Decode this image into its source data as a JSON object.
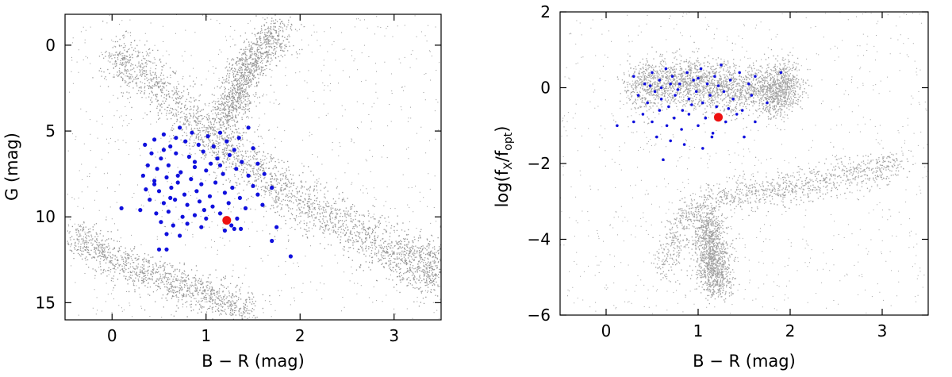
{
  "chart_data": [
    {
      "type": "scatter",
      "xlabel": "B − R (mag)",
      "ylabel": "G (mag)",
      "xlim": [
        -0.5,
        3.5
      ],
      "ylim": [
        16,
        -1.8
      ],
      "y_inverted": true,
      "xticks": [
        0,
        1,
        2,
        3
      ],
      "yticks": [
        0,
        5,
        10,
        15
      ],
      "grid": false,
      "background_population": {
        "color": "#444444",
        "description_bands": [
          {
            "x": [
              0.0,
              0.4,
              0.9,
              1.3,
              1.8,
              2.3,
              2.8,
              3.2,
              3.5
            ],
            "y": [
              0.5,
              2.0,
              4.5,
              6.5,
              8.3,
              10.0,
              11.5,
              12.6,
              13.2
            ]
          },
          {
            "x": [
              1.2,
              1.3,
              1.4,
              1.6,
              1.8
            ],
            "y": [
              4.5,
              3.0,
              1.5,
              0.2,
              -1.0
            ]
          },
          {
            "x": [
              -0.4,
              0.0,
              0.5,
              1.0,
              1.5
            ],
            "y": [
              11.0,
              12.5,
              13.5,
              14.5,
              15.5
            ]
          }
        ]
      },
      "series": [
        {
          "color": "#1010dd",
          "points": [
            [
              0.72,
              4.8
            ],
            [
              0.85,
              5.1
            ],
            [
              1.02,
              5.3
            ],
            [
              1.15,
              5.1
            ],
            [
              1.35,
              5.4
            ],
            [
              1.45,
              4.8
            ],
            [
              0.45,
              5.5
            ],
            [
              0.55,
              5.2
            ],
            [
              0.62,
              5.9
            ],
            [
              0.78,
              5.6
            ],
            [
              0.92,
              5.8
            ],
            [
              1.08,
              5.9
            ],
            [
              1.22,
              5.6
            ],
            [
              1.3,
              6.1
            ],
            [
              1.5,
              6.0
            ],
            [
              0.35,
              5.8
            ],
            [
              0.42,
              6.3
            ],
            [
              0.52,
              6.6
            ],
            [
              0.68,
              6.3
            ],
            [
              0.82,
              6.5
            ],
            [
              0.97,
              6.2
            ],
            [
              1.12,
              6.6
            ],
            [
              1.25,
              6.4
            ],
            [
              1.38,
              6.8
            ],
            [
              1.55,
              6.9
            ],
            [
              0.38,
              7.0
            ],
            [
              0.48,
              7.2
            ],
            [
              0.6,
              7.0
            ],
            [
              0.73,
              7.4
            ],
            [
              0.88,
              7.1
            ],
            [
              1.0,
              7.3
            ],
            [
              1.18,
              7.5
            ],
            [
              1.32,
              7.2
            ],
            [
              1.45,
              7.6
            ],
            [
              1.62,
              7.5
            ],
            [
              0.33,
              7.6
            ],
            [
              0.45,
              7.9
            ],
            [
              0.58,
              7.7
            ],
            [
              0.7,
              8.0
            ],
            [
              0.84,
              7.8
            ],
            [
              0.95,
              8.1
            ],
            [
              1.1,
              8.0
            ],
            [
              1.28,
              8.3
            ],
            [
              1.5,
              8.2
            ],
            [
              1.7,
              8.3
            ],
            [
              0.36,
              8.4
            ],
            [
              0.5,
              8.5
            ],
            [
              0.63,
              8.3
            ],
            [
              0.77,
              8.7
            ],
            [
              0.9,
              8.5
            ],
            [
              1.04,
              8.8
            ],
            [
              1.2,
              8.6
            ],
            [
              1.36,
              8.9
            ],
            [
              1.55,
              8.7
            ],
            [
              0.4,
              9.0
            ],
            [
              0.55,
              9.2
            ],
            [
              0.67,
              9.0
            ],
            [
              0.8,
              9.3
            ],
            [
              0.93,
              9.1
            ],
            [
              1.07,
              9.4
            ],
            [
              1.24,
              9.2
            ],
            [
              1.42,
              9.5
            ],
            [
              1.6,
              9.3
            ],
            [
              0.1,
              9.5
            ],
            [
              0.3,
              9.6
            ],
            [
              0.47,
              9.8
            ],
            [
              0.6,
              9.7
            ],
            [
              0.75,
              10.0
            ],
            [
              0.88,
              9.9
            ],
            [
              1.0,
              10.1
            ],
            [
              1.15,
              9.8
            ],
            [
              1.33,
              10.1
            ],
            [
              0.52,
              10.3
            ],
            [
              0.65,
              10.5
            ],
            [
              0.8,
              10.4
            ],
            [
              0.95,
              10.6
            ],
            [
              1.27,
              10.5
            ],
            [
              1.37,
              10.7
            ],
            [
              0.58,
              11.0
            ],
            [
              0.72,
              11.1
            ],
            [
              1.2,
              10.8
            ],
            [
              1.3,
              10.7
            ],
            [
              0.5,
              11.9
            ],
            [
              0.58,
              11.9
            ],
            [
              1.7,
              11.4
            ],
            [
              1.9,
              12.3
            ],
            [
              1.75,
              10.6
            ],
            [
              0.68,
              5.4
            ],
            [
              0.88,
              6.8
            ],
            [
              1.05,
              6.9
            ],
            [
              0.62,
              8.9
            ],
            [
              0.45,
              8.1
            ],
            [
              1.15,
              7.0
            ],
            [
              0.98,
              9.6
            ],
            [
              0.55,
              6.1
            ],
            [
              0.7,
              7.6
            ]
          ]
        },
        {
          "color": "#ee1111",
          "points": [
            [
              1.22,
              10.2
            ]
          ]
        }
      ]
    },
    {
      "type": "scatter",
      "xlabel": "B − R (mag)",
      "ylabel": "log(f",
      "ylabel_sub1": "X",
      "ylabel_mid": "/f",
      "ylabel_sub2": "opt",
      "ylabel_end": ")",
      "xlim": [
        -0.5,
        3.5
      ],
      "ylim": [
        -6,
        2
      ],
      "xticks": [
        0,
        1,
        2,
        3
      ],
      "yticks": [
        2,
        0,
        -2,
        -4,
        -6
      ],
      "ytick_labels": [
        "2",
        "0",
        "−2",
        "−4",
        "−6"
      ],
      "grid": false,
      "background_population": {
        "color": "#555555",
        "description_bands": [
          {
            "x": [
              0.3,
              0.8,
              1.3,
              1.8,
              2.0
            ],
            "y": [
              0.0,
              0.2,
              0.0,
              -0.1,
              0.1
            ]
          },
          {
            "x": [
              0.6,
              0.9,
              1.4,
              2.0,
              2.6,
              3.2
            ],
            "y": [
              -4.8,
              -3.3,
              -2.8,
              -2.6,
              -2.3,
              -2.0
            ]
          },
          {
            "x": [
              1.1,
              1.15,
              1.2
            ],
            "y": [
              -3.5,
              -4.5,
              -5.3
            ]
          }
        ]
      },
      "series": [
        {
          "color": "#1010dd",
          "points": [
            [
              0.3,
              0.3
            ],
            [
              0.42,
              0.1
            ],
            [
              0.5,
              0.4
            ],
            [
              0.58,
              0.2
            ],
            [
              0.65,
              0.5
            ],
            [
              0.72,
              0.3
            ],
            [
              0.8,
              0.1
            ],
            [
              0.88,
              0.4
            ],
            [
              0.95,
              0.2
            ],
            [
              1.03,
              0.5
            ],
            [
              1.1,
              0.1
            ],
            [
              1.18,
              0.3
            ],
            [
              1.25,
              0.6
            ],
            [
              1.35,
              0.2
            ],
            [
              1.45,
              0.4
            ],
            [
              1.55,
              0.1
            ],
            [
              1.62,
              0.3
            ],
            [
              1.9,
              0.4
            ],
            [
              0.35,
              -0.2
            ],
            [
              0.45,
              -0.4
            ],
            [
              0.53,
              -0.1
            ],
            [
              0.6,
              -0.3
            ],
            [
              0.68,
              -0.5
            ],
            [
              0.75,
              -0.2
            ],
            [
              0.83,
              -0.6
            ],
            [
              0.9,
              -0.3
            ],
            [
              0.98,
              -0.1
            ],
            [
              1.05,
              -0.4
            ],
            [
              1.13,
              -0.2
            ],
            [
              1.2,
              -0.5
            ],
            [
              1.28,
              -0.1
            ],
            [
              1.38,
              -0.3
            ],
            [
              1.48,
              -0.6
            ],
            [
              1.58,
              -0.2
            ],
            [
              1.75,
              -0.4
            ],
            [
              0.4,
              -0.7
            ],
            [
              0.5,
              -0.9
            ],
            [
              0.58,
              -0.6
            ],
            [
              0.66,
              -1.0
            ],
            [
              0.74,
              -0.8
            ],
            [
              0.82,
              -1.1
            ],
            [
              0.9,
              -0.7
            ],
            [
              1.0,
              -1.0
            ],
            [
              1.08,
              -0.8
            ],
            [
              1.16,
              -1.2
            ],
            [
              1.3,
              -0.9
            ],
            [
              1.42,
              -0.7
            ],
            [
              1.62,
              -0.9
            ],
            [
              0.12,
              -1.0
            ],
            [
              0.3,
              -0.9
            ],
            [
              0.55,
              -1.3
            ],
            [
              0.7,
              -1.4
            ],
            [
              0.85,
              -1.5
            ],
            [
              1.15,
              -1.3
            ],
            [
              1.5,
              -1.3
            ],
            [
              0.62,
              -1.9
            ],
            [
              1.05,
              -1.6
            ],
            [
              0.6,
              0.0
            ],
            [
              0.78,
              -0.05
            ],
            [
              1.22,
              0.05
            ],
            [
              0.48,
              0.05
            ],
            [
              0.93,
              -0.45
            ],
            [
              1.33,
              -0.55
            ],
            [
              0.7,
              0.1
            ],
            [
              1.0,
              0.25
            ]
          ]
        },
        {
          "color": "#ee1111",
          "points": [
            [
              1.22,
              -0.78
            ]
          ]
        }
      ]
    }
  ]
}
